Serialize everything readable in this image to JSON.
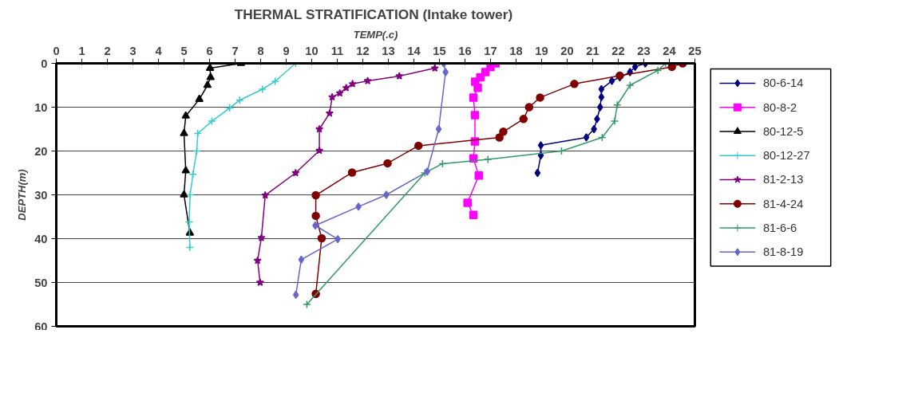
{
  "chart_data": {
    "type": "line",
    "title": "THERMAL STRATIFICATION  (Intake tower)",
    "xlabel": "TEMP(.c)",
    "ylabel": "DEPTH(m)",
    "xlim": [
      0,
      25
    ],
    "xticks": [
      0,
      1,
      2,
      3,
      4,
      5,
      6,
      7,
      8,
      9,
      10,
      11,
      12,
      13,
      14,
      15,
      16,
      17,
      18,
      19,
      20,
      21,
      22,
      23,
      24,
      25
    ],
    "ylim": [
      60,
      0
    ],
    "yticks": [
      0,
      10,
      20,
      30,
      40,
      50,
      60
    ],
    "grid": "y",
    "legend": "right",
    "series": [
      {
        "name": "80-6-14",
        "color": "#000080",
        "marker": "diamond",
        "x": [
          23.06,
          22.66,
          22.46,
          22.06,
          21.75,
          21.34,
          21.34,
          21.29,
          21.17,
          21.05,
          20.75,
          18.97,
          18.97,
          18.84
        ],
        "values": [
          0,
          0.8,
          2,
          3.2,
          4,
          5.9,
          7.7,
          10,
          12.7,
          15,
          16.9,
          18.7,
          21,
          25
        ]
      },
      {
        "name": "80-8-2",
        "color": "#ff00ff",
        "marker": "square",
        "x": [
          17.2,
          17.0,
          16.8,
          16.6,
          16.4,
          16.5,
          16.33,
          16.39,
          16.39,
          16.33,
          16.54,
          16.1,
          16.33
        ],
        "values": [
          0,
          0.8,
          2,
          3.2,
          4.2,
          5.6,
          7.8,
          11.8,
          17.8,
          21.7,
          25.6,
          31.8,
          34.6
        ]
      },
      {
        "name": "80-12-5",
        "color": "#000000",
        "marker": "triangle",
        "x": [
          7.23,
          6.02,
          6.04,
          5.92,
          5.6,
          5.07,
          5.0,
          5.07,
          5.0,
          5.23
        ],
        "values": [
          0,
          1.1,
          3.2,
          5,
          8.2,
          12,
          16,
          24.5,
          30,
          38.7
        ]
      },
      {
        "name": "80-12-27",
        "color": "#33cccc",
        "marker": "cross",
        "x": [
          9.37,
          8.57,
          8.07,
          7.18,
          6.79,
          6.09,
          5.54,
          5.5,
          5.35,
          5.24,
          5.2,
          5.23
        ],
        "values": [
          0,
          4.1,
          5.9,
          8.4,
          10.2,
          13.2,
          16,
          20,
          25.3,
          30,
          36.2,
          42
        ]
      },
      {
        "name": "81-2-13",
        "color": "#800080",
        "marker": "star",
        "x": [
          14.82,
          13.43,
          12.19,
          11.6,
          11.35,
          11.1,
          10.8,
          10.7,
          10.3,
          10.3,
          9.37,
          8.18,
          8.03,
          7.88,
          7.98
        ],
        "values": [
          1.1,
          2.9,
          4,
          4.7,
          5.6,
          6.8,
          7.7,
          11.4,
          15,
          19.9,
          25,
          30.1,
          39.8,
          45,
          50
        ]
      },
      {
        "name": "81-4-24",
        "color": "#800000",
        "marker": "circle",
        "x": [
          24.52,
          24.1,
          22.06,
          20.28,
          18.94,
          18.51,
          18.29,
          17.5,
          17.35,
          14.18,
          12.97,
          11.58,
          10.16,
          10.16,
          10.39,
          10.16
        ],
        "values": [
          0,
          0.8,
          2.8,
          4.7,
          7.8,
          10,
          12.7,
          15.6,
          16.9,
          18.8,
          22.8,
          24.9,
          30.1,
          34.8,
          39.9,
          52.6
        ]
      },
      {
        "name": "81-6-6",
        "color": "#339966",
        "marker": "cross",
        "x": [
          23.85,
          23.55,
          22.46,
          21.96,
          21.86,
          21.37,
          19.78,
          16.9,
          15.12,
          14.43,
          9.81
        ],
        "values": [
          0,
          1.6,
          5,
          9.5,
          13.2,
          16.9,
          20,
          21.9,
          22.9,
          25,
          55
        ]
      },
      {
        "name": "81-8-19",
        "color": "#6666cc",
        "marker": "diamond",
        "x": [
          15.17,
          15.24,
          14.97,
          14.52,
          12.92,
          11.83,
          10.14,
          11.02,
          9.59,
          9.38
        ],
        "values": [
          0,
          2,
          15,
          24.7,
          30,
          32.7,
          37,
          40.1,
          44.8,
          52.8
        ]
      }
    ]
  }
}
